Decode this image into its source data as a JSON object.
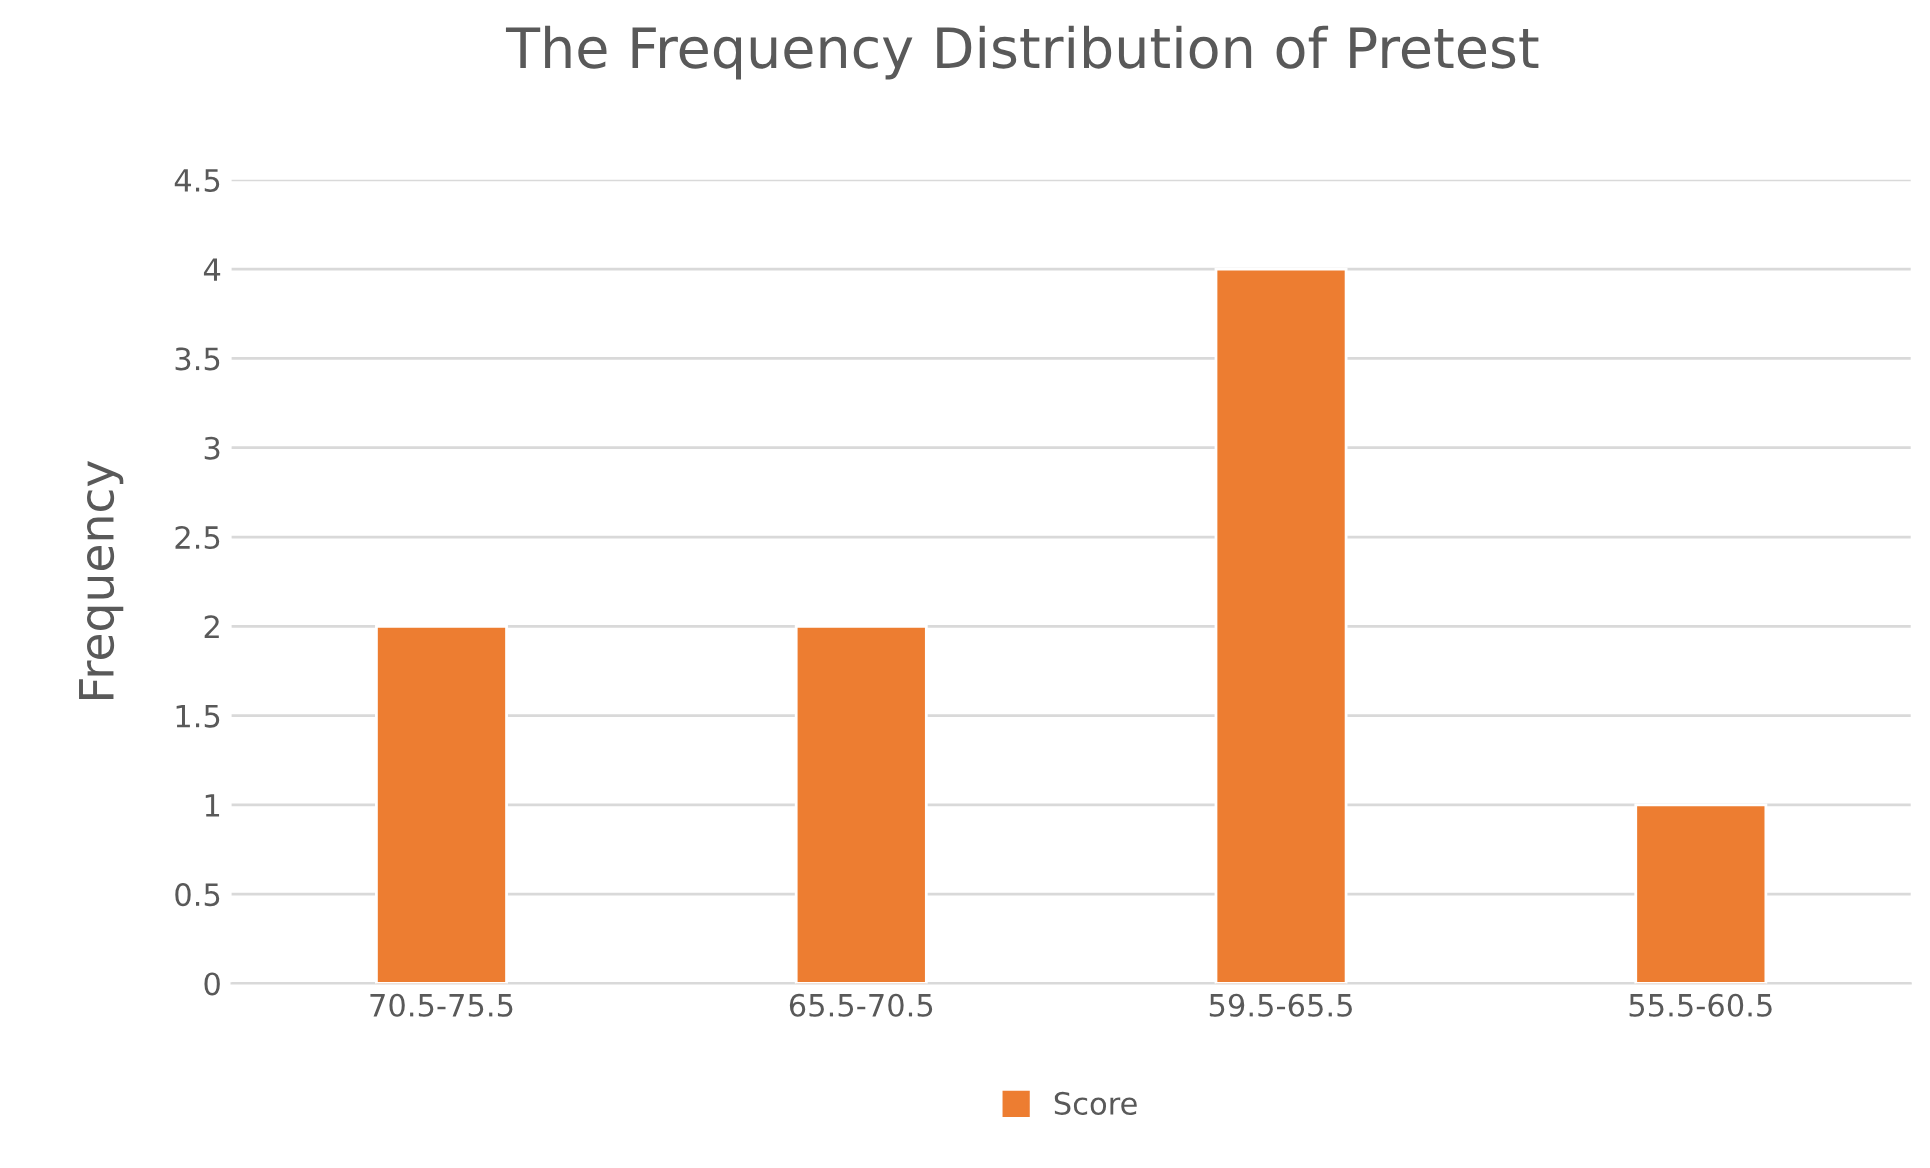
{
  "chart_data": {
    "type": "bar",
    "title": "The Frequency Distribution of Pretest",
    "ylabel": "Frequency",
    "categories": [
      "70.5-75.5",
      "65.5-70.5",
      "59.5-65.5",
      "55.5-60.5"
    ],
    "series": [
      {
        "name": "Score",
        "color": "#ed7d31",
        "values": [
          2,
          2,
          4,
          1
        ]
      }
    ],
    "ylim": [
      0,
      4.5
    ],
    "yticks": [
      0,
      0.5,
      1,
      1.5,
      2,
      2.5,
      3,
      3.5,
      4,
      4.5
    ],
    "grid": "y",
    "legend": "bottom"
  }
}
